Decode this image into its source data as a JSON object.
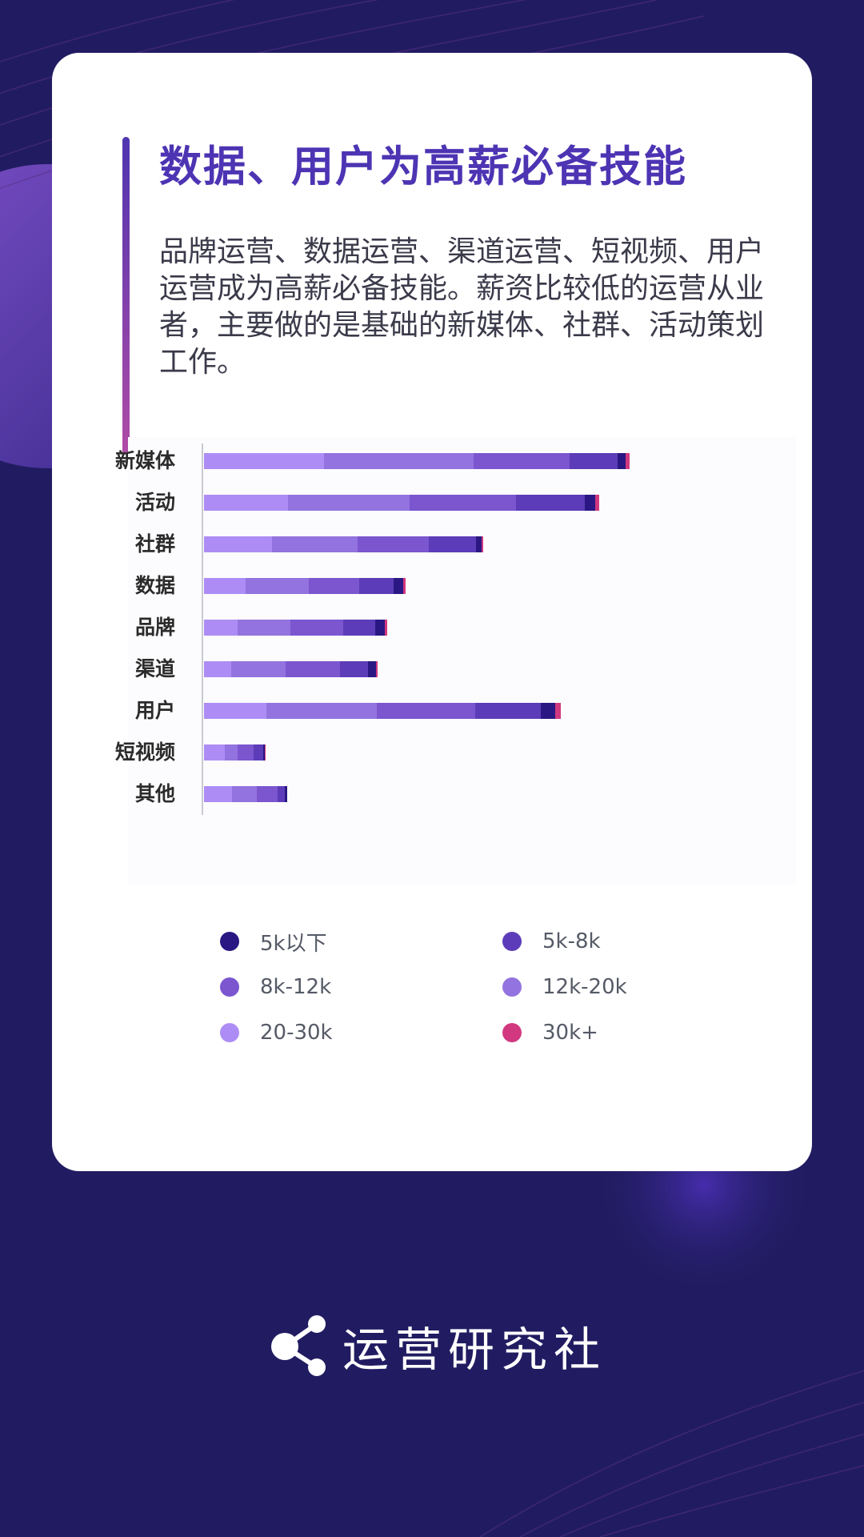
{
  "colors": {
    "background": "#211c61",
    "card": "#ffffff",
    "title": "#4d34b3",
    "accent_gradient": [
      "#4f35b0",
      "#b04ba6"
    ]
  },
  "header": {
    "title": "数据、用户为高薪必备技能",
    "description": "品牌运营、数据运营、渠道运营、短视频、用户运营成为高薪必备技能。薪资比较低的运营从业者，主要做的是基础的新媒体、社群、活动策划工作。"
  },
  "chart_data": {
    "type": "bar",
    "orientation": "horizontal",
    "stacked": true,
    "categories": [
      "新媒体",
      "活动",
      "社群",
      "数据",
      "品牌",
      "渠道",
      "用户",
      "短视频",
      "其他"
    ],
    "series": [
      {
        "name": "20-30k",
        "color": "#ad8df5",
        "values": [
          150,
          105,
          85,
          52,
          42,
          34,
          78,
          26,
          35
        ]
      },
      {
        "name": "12k-20k",
        "color": "#9373df",
        "values": [
          187,
          152,
          107,
          79,
          66,
          68,
          138,
          16,
          31
        ]
      },
      {
        "name": "8k-12k",
        "color": "#7b56cf",
        "values": [
          120,
          133,
          89,
          63,
          66,
          68,
          123,
          20,
          26
        ]
      },
      {
        "name": "5k-8k",
        "color": "#5c3cb8",
        "values": [
          60,
          86,
          59,
          43,
          40,
          35,
          82,
          12,
          9
        ]
      },
      {
        "name": "5k以下",
        "color": "#2a1783",
        "values": [
          10,
          13,
          7,
          12,
          12,
          10,
          18,
          2,
          3
        ]
      },
      {
        "name": "30k+",
        "color": "#d1387f",
        "values": [
          5,
          5,
          2,
          3,
          3,
          2,
          7,
          1,
          0
        ]
      }
    ],
    "legend": [
      "5k以下",
      "5k-8k",
      "8k-12k",
      "12k-20k",
      "20-30k",
      "30k+"
    ],
    "legend_position": "bottom",
    "grid": false,
    "xlim": [
      0,
      540
    ]
  },
  "legend_items": [
    {
      "label": "5k以下",
      "color": "#2a1783"
    },
    {
      "label": "5k-8k",
      "color": "#5c3cb8"
    },
    {
      "label": "8k-12k",
      "color": "#7b56cf"
    },
    {
      "label": "12k-20k",
      "color": "#9373df"
    },
    {
      "label": "20-30k",
      "color": "#ad8df5"
    },
    {
      "label": "30k+",
      "color": "#d1387f"
    }
  ],
  "footer": {
    "brand": "运营研究社",
    "icon": "share-icon"
  }
}
